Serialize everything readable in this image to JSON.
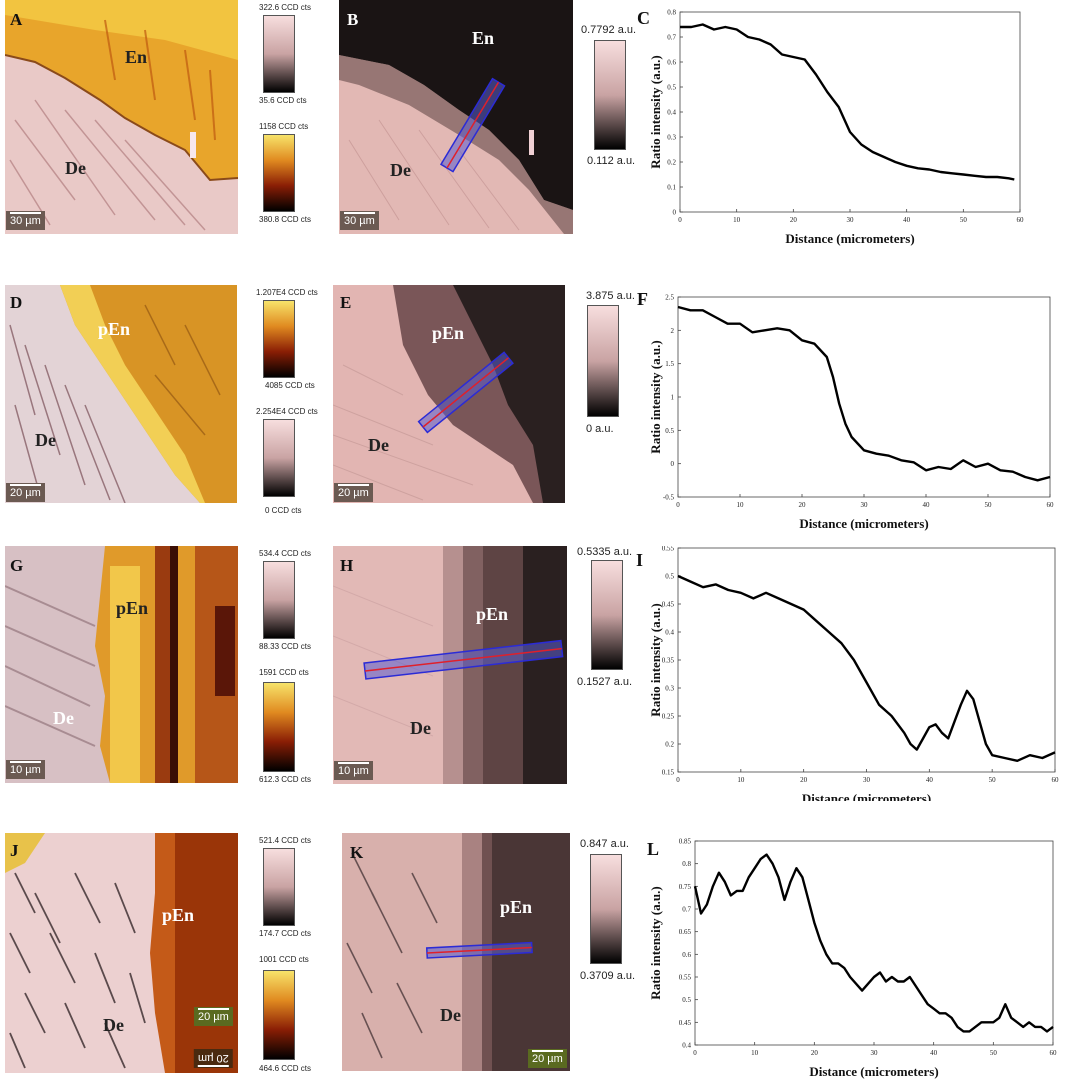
{
  "figure": {
    "rows": [
      {
        "raman": {
          "letter": "A",
          "regions": [
            "En",
            "De"
          ],
          "scale": "30 µm",
          "colorbars": [
            {
              "top": "322.6 CCD cts",
              "bottom": "35.6 CCD cts",
              "scheme": "pink"
            },
            {
              "top": "1158 CCD cts",
              "bottom": "380.8 CCD cts",
              "scheme": "gold"
            }
          ]
        },
        "ratio": {
          "letter": "B",
          "regions": [
            "En",
            "De"
          ],
          "scale": "30 µm",
          "colorbar": {
            "top": "0.7792 a.u.",
            "bottom": "0.112 a.u."
          }
        }
      },
      {
        "raman": {
          "letter": "D",
          "regions": [
            "pEn",
            "De"
          ],
          "scale": "20 µm",
          "colorbars": [
            {
              "top": "1.207E4 CCD cts",
              "bottom": "4085 CCD cts",
              "scheme": "gold"
            },
            {
              "top": "2.254E4 CCD cts",
              "bottom": "0 CCD cts",
              "scheme": "pink"
            }
          ]
        },
        "ratio": {
          "letter": "E",
          "regions": [
            "pEn",
            "De"
          ],
          "scale": "20 µm",
          "colorbar": {
            "top": "3.875 a.u.",
            "bottom": "0 a.u."
          }
        }
      },
      {
        "raman": {
          "letter": "G",
          "regions": [
            "pEn",
            "De"
          ],
          "scale": "10 µm",
          "colorbars": [
            {
              "top": "534.4 CCD cts",
              "bottom": "88.33 CCD cts",
              "scheme": "pink"
            },
            {
              "top": "1591 CCD cts",
              "bottom": "612.3 CCD cts",
              "scheme": "gold"
            }
          ]
        },
        "ratio": {
          "letter": "H",
          "regions": [
            "pEn",
            "De"
          ],
          "scale": "10 µm",
          "colorbar": {
            "top": "0.5335 a.u.",
            "bottom": "0.1527 a.u."
          }
        }
      },
      {
        "raman": {
          "letter": "J",
          "regions": [
            "pEn",
            "De"
          ],
          "scale": "20 µm",
          "scale_mirrored": "20 µm",
          "colorbars": [
            {
              "top": "521.4 CCD cts",
              "bottom": "174.7 CCD cts",
              "scheme": "pink"
            },
            {
              "top": "1001 CCD cts",
              "bottom": "464.6 CCD cts",
              "scheme": "gold"
            }
          ]
        },
        "ratio": {
          "letter": "K",
          "regions": [
            "pEn",
            "De"
          ],
          "scale": "20 µm",
          "colorbar": {
            "top": "0.847 a.u.",
            "bottom": "0.3709 a.u."
          }
        }
      }
    ]
  },
  "chart_data": [
    {
      "type": "line",
      "letter": "C",
      "xlabel": "Distance (micrometers)",
      "ylabel": "Ratio intensity (a.u.)",
      "xlim": [
        0,
        60
      ],
      "ylim": [
        0,
        0.8
      ],
      "xticks": [
        "0",
        "10",
        "20",
        "30",
        "40",
        "50",
        "60"
      ],
      "yticks": [
        "0",
        "0.1",
        "0.2",
        "0.3",
        "0.4",
        "0.5",
        "0.6",
        "0.7",
        "0.8"
      ],
      "x": [
        0,
        2,
        4,
        6,
        8,
        10,
        12,
        14,
        16,
        18,
        20,
        22,
        24,
        26,
        28,
        30,
        32,
        34,
        36,
        38,
        40,
        42,
        44,
        46,
        48,
        50,
        52,
        54,
        56,
        58,
        59
      ],
      "y": [
        0.74,
        0.74,
        0.75,
        0.73,
        0.74,
        0.73,
        0.7,
        0.69,
        0.67,
        0.63,
        0.62,
        0.61,
        0.55,
        0.48,
        0.42,
        0.32,
        0.27,
        0.24,
        0.22,
        0.2,
        0.185,
        0.175,
        0.17,
        0.16,
        0.155,
        0.15,
        0.145,
        0.14,
        0.14,
        0.135,
        0.13
      ]
    },
    {
      "type": "line",
      "letter": "F",
      "xlabel": "Distance (micrometers)",
      "ylabel": "Ratio intensity (a.u.)",
      "xlim": [
        0,
        60
      ],
      "ylim": [
        -0.5,
        2.5
      ],
      "xticks": [
        "0",
        "10",
        "20",
        "30",
        "40",
        "50",
        "60"
      ],
      "yticks": [
        "-0.5",
        "0",
        "0.5",
        "1",
        "1.5",
        "2",
        "2.5"
      ],
      "x": [
        0,
        2,
        4,
        6,
        8,
        10,
        12,
        14,
        16,
        18,
        20,
        22,
        24,
        25,
        26,
        27,
        28,
        30,
        32,
        34,
        36,
        38,
        40,
        42,
        44,
        46,
        48,
        50,
        52,
        54,
        56,
        58,
        60
      ],
      "y": [
        2.35,
        2.3,
        2.3,
        2.2,
        2.1,
        2.1,
        1.97,
        2.0,
        2.03,
        2.0,
        1.85,
        1.8,
        1.6,
        1.3,
        0.9,
        0.6,
        0.4,
        0.2,
        0.15,
        0.12,
        0.05,
        0.02,
        -0.1,
        -0.05,
        -0.08,
        0.05,
        -0.05,
        0.0,
        -0.1,
        -0.12,
        -0.2,
        -0.25,
        -0.2
      ]
    },
    {
      "type": "line",
      "letter": "I",
      "xlabel": "Distance (micrometers)",
      "ylabel": "Ratio intensity (a.u.)",
      "xlim": [
        0,
        60
      ],
      "ylim": [
        0.15,
        0.55
      ],
      "xticks": [
        "0",
        "10",
        "20",
        "30",
        "40",
        "50",
        "60"
      ],
      "yticks": [
        "0.15",
        "0.2",
        "0.25",
        "0.3",
        "0.35",
        "0.4",
        "0.45",
        "0.5",
        "0.55"
      ],
      "x": [
        0,
        2,
        4,
        6,
        8,
        10,
        12,
        14,
        16,
        18,
        20,
        22,
        24,
        26,
        28,
        30,
        32,
        34,
        36,
        37,
        38,
        39,
        40,
        41,
        42,
        43,
        44,
        45,
        46,
        47,
        48,
        49,
        50,
        52,
        54,
        56,
        58,
        60
      ],
      "y": [
        0.5,
        0.49,
        0.48,
        0.485,
        0.475,
        0.47,
        0.46,
        0.47,
        0.46,
        0.45,
        0.44,
        0.42,
        0.4,
        0.38,
        0.35,
        0.31,
        0.27,
        0.25,
        0.22,
        0.2,
        0.19,
        0.21,
        0.23,
        0.235,
        0.22,
        0.21,
        0.24,
        0.27,
        0.295,
        0.28,
        0.24,
        0.2,
        0.18,
        0.175,
        0.17,
        0.18,
        0.175,
        0.185
      ]
    },
    {
      "type": "line",
      "letter": "L",
      "xlabel": "Distance (micrometers)",
      "ylabel": "Ratio intensity (a.u.)",
      "xlim": [
        0,
        60
      ],
      "ylim": [
        0.4,
        0.85
      ],
      "xticks": [
        "0",
        "10",
        "20",
        "30",
        "40",
        "50",
        "60"
      ],
      "yticks": [
        "0.4",
        "0.45",
        "0.5",
        "0.55",
        "0.6",
        "0.65",
        "0.7",
        "0.75",
        "0.8",
        "0.85"
      ],
      "x": [
        0,
        1,
        2,
        3,
        4,
        5,
        6,
        7,
        8,
        9,
        10,
        11,
        12,
        13,
        14,
        15,
        16,
        17,
        18,
        19,
        20,
        21,
        22,
        23,
        24,
        25,
        26,
        28,
        30,
        31,
        32,
        33,
        34,
        35,
        36,
        37,
        38,
        39,
        40,
        41,
        42,
        43,
        44,
        45,
        46,
        48,
        50,
        51,
        52,
        53,
        54,
        55,
        56,
        57,
        58,
        59,
        60
      ],
      "y": [
        0.75,
        0.69,
        0.71,
        0.75,
        0.78,
        0.76,
        0.73,
        0.74,
        0.74,
        0.77,
        0.79,
        0.81,
        0.82,
        0.8,
        0.77,
        0.72,
        0.76,
        0.79,
        0.77,
        0.72,
        0.67,
        0.63,
        0.6,
        0.58,
        0.58,
        0.57,
        0.55,
        0.52,
        0.55,
        0.56,
        0.54,
        0.55,
        0.54,
        0.54,
        0.55,
        0.53,
        0.51,
        0.49,
        0.48,
        0.47,
        0.47,
        0.46,
        0.44,
        0.43,
        0.43,
        0.45,
        0.45,
        0.46,
        0.49,
        0.46,
        0.45,
        0.44,
        0.45,
        0.44,
        0.44,
        0.43,
        0.44
      ]
    }
  ]
}
